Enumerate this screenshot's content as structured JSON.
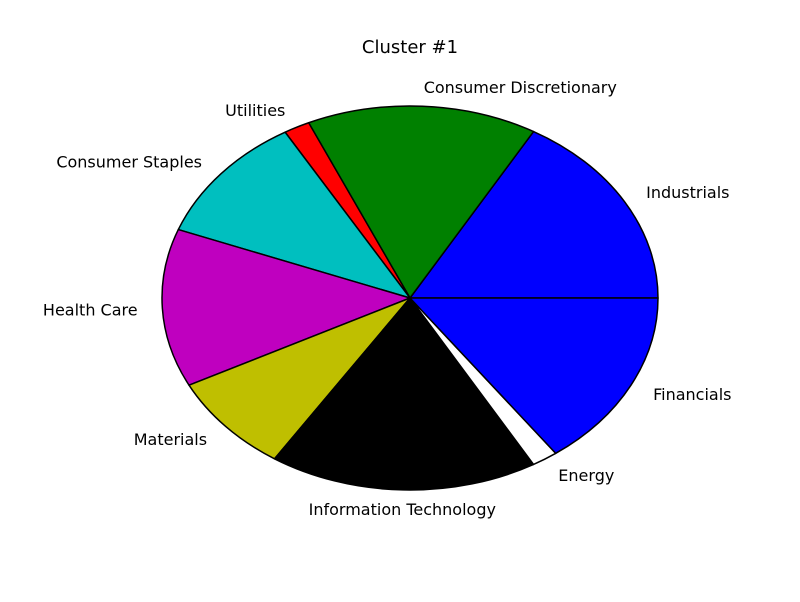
{
  "chart_data": {
    "type": "pie",
    "title": "Cluster #1",
    "start_angle_deg": 0,
    "direction": "counterclockwise",
    "slices": [
      {
        "label": "Industrials",
        "value": 16.7,
        "color": "#0000ff"
      },
      {
        "label": "Consumer Discretionary",
        "value": 15.0,
        "color": "#008000"
      },
      {
        "label": "Utilities",
        "value": 1.7,
        "color": "#ff0000"
      },
      {
        "label": "Consumer Staples",
        "value": 10.8,
        "color": "#00bfbf"
      },
      {
        "label": "Health Care",
        "value": 13.3,
        "color": "#bf00bf"
      },
      {
        "label": "Materials",
        "value": 8.3,
        "color": "#bfbf00"
      },
      {
        "label": "Information Technology",
        "value": 17.5,
        "color": "#000000"
      },
      {
        "label": "Energy",
        "value": 1.7,
        "color": "#ffffff"
      },
      {
        "label": "Financials",
        "value": 15.0,
        "color": "#0000ff"
      }
    ]
  }
}
